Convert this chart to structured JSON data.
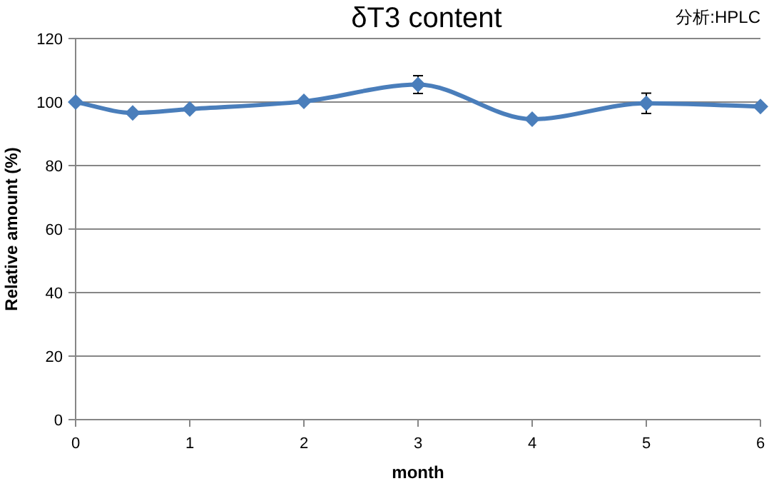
{
  "chart_data": {
    "type": "line",
    "title": "δT3 content",
    "annotations": [
      "分析:HPLC"
    ],
    "xlabel": "month",
    "ylabel": "Relative amount (%)",
    "x": [
      0,
      0.5,
      1,
      2,
      3,
      4,
      5,
      6
    ],
    "series": [
      {
        "color": "#4a7ebb",
        "values": [
          100,
          96.6,
          97.8,
          100.2,
          105.5,
          94.6,
          99.6,
          98.6
        ],
        "errors": [
          null,
          null,
          null,
          null,
          2.8,
          null,
          3.2,
          null
        ]
      }
    ],
    "xlim": [
      0,
      6
    ],
    "xticks": [
      0,
      1,
      2,
      3,
      4,
      5,
      6
    ],
    "ylim": [
      0,
      120
    ],
    "yticks": [
      0,
      20,
      40,
      60,
      80,
      100,
      120
    ],
    "grid": "y",
    "marker": "diamond",
    "line_style": "solid"
  }
}
